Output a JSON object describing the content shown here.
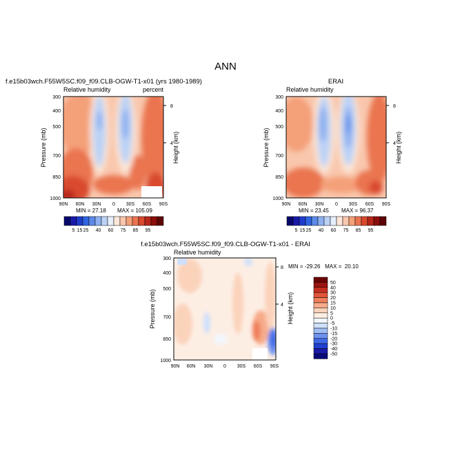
{
  "page_title": "ANN",
  "chart_data": [
    {
      "type": "heatmap",
      "id": "model",
      "header": "f.e15b03wch.F55W5SC.f09_f09.CLB-OGW-T1-x01 (yrs 1980-1989)",
      "title": "Relative humidity",
      "units": "percent",
      "xlabel": "",
      "ylabel": "Pressure (mb)",
      "y2label": "Height (km)",
      "xticks": [
        "90N",
        "60N",
        "30N",
        "0",
        "30S",
        "60S",
        "90S"
      ],
      "yticks": [
        300,
        400,
        500,
        700,
        850,
        1000
      ],
      "y2ticks": [
        "8",
        "4"
      ],
      "ylim": [
        1000,
        300
      ],
      "min_label": "MIN = 27.18",
      "max_label": "MAX = 105.09",
      "min": 27.18,
      "max": 105.09,
      "colorbar_labels": [
        "5",
        "15",
        "25",
        "40",
        "60",
        "75",
        "85",
        "95"
      ],
      "colorbar_orientation": "horizontal"
    },
    {
      "type": "heatmap",
      "id": "obs",
      "header": "ERAI",
      "title": "Relative humidity",
      "units": "",
      "xlabel": "",
      "ylabel": "Pressure (mb)",
      "y2label": "Height (km)",
      "xticks": [
        "90N",
        "60N",
        "30N",
        "0",
        "30S",
        "60S",
        "90S"
      ],
      "yticks": [
        300,
        400,
        500,
        700,
        850,
        1000
      ],
      "y2ticks": [
        "8",
        "4"
      ],
      "ylim": [
        1000,
        300
      ],
      "min_label": "MIN = 23.45",
      "max_label": "MAX = 96.37",
      "min": 23.45,
      "max": 96.37,
      "colorbar_labels": [
        "5",
        "15",
        "25",
        "40",
        "60",
        "75",
        "85",
        "95"
      ],
      "colorbar_orientation": "horizontal"
    },
    {
      "type": "heatmap",
      "id": "diff",
      "header": "f.e15b03wch.F55W5SC.f09_f09.CLB-OGW-T1-x01 - ERAI",
      "title": "Relative humidity",
      "units": "",
      "xlabel": "",
      "ylabel": "Pressure (mb)",
      "y2label": "Height (km)",
      "xticks": [
        "90N",
        "60N",
        "30N",
        "0",
        "30S",
        "60S",
        "90S"
      ],
      "yticks": [
        300,
        400,
        500,
        700,
        850,
        1000
      ],
      "y2ticks": [
        "8",
        "4"
      ],
      "ylim": [
        1000,
        300
      ],
      "minmax_label": "MIN = -29.26   MAX =  20.10",
      "min": -29.26,
      "max": 20.1,
      "colorbar_labels": [
        "50",
        "40",
        "30",
        "20",
        "15",
        "10",
        "5",
        "0",
        "-5",
        "-10",
        "-15",
        "-20",
        "-30",
        "-40",
        "-50"
      ],
      "colorbar_orientation": "vertical"
    }
  ],
  "colors": {
    "rh_scale": [
      "#08086b",
      "#1a1aa8",
      "#1f3ccc",
      "#2f64e0",
      "#5c8ae8",
      "#8fb1f0",
      "#bcd2f5",
      "#e6eefa",
      "#fbe6d8",
      "#f9c7ad",
      "#f4a079",
      "#ea7450",
      "#d9492e",
      "#b7261a",
      "#8a0e0a",
      "#5e0505"
    ],
    "diff_scale": [
      "#0a0a7a",
      "#1a1aa8",
      "#2040d0",
      "#3f68e6",
      "#6f92ee",
      "#a0bdf5",
      "#cfe0fa",
      "#f3f6fd",
      "#fdeee4",
      "#fbd3bb",
      "#f7ac8a",
      "#f07f5c",
      "#e2553a",
      "#c52e1f",
      "#9a1510",
      "#6b0505"
    ]
  }
}
